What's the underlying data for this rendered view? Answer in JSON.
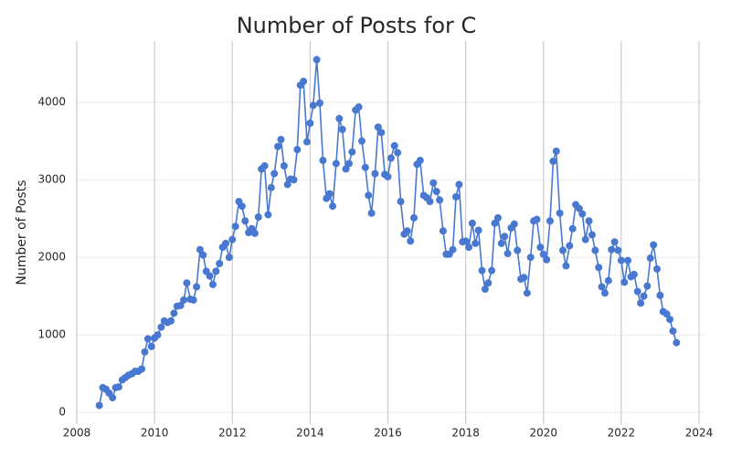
{
  "chart_data": {
    "type": "line",
    "title": "Number of Posts for C",
    "ylabel": "Number of Posts",
    "x": [
      2008.58,
      2008.67,
      2008.75,
      2008.83,
      2008.92,
      2009,
      2009.08,
      2009.17,
      2009.25,
      2009.33,
      2009.42,
      2009.5,
      2009.58,
      2009.67,
      2009.75,
      2009.83,
      2009.92,
      2010,
      2010.08,
      2010.17,
      2010.25,
      2010.33,
      2010.42,
      2010.5,
      2010.58,
      2010.67,
      2010.75,
      2010.83,
      2010.92,
      2011,
      2011.08,
      2011.17,
      2011.25,
      2011.33,
      2011.42,
      2011.5,
      2011.58,
      2011.67,
      2011.75,
      2011.83,
      2011.92,
      2012,
      2012.08,
      2012.17,
      2012.25,
      2012.33,
      2012.42,
      2012.5,
      2012.58,
      2012.67,
      2012.75,
      2012.83,
      2012.92,
      2013,
      2013.08,
      2013.17,
      2013.25,
      2013.33,
      2013.42,
      2013.5,
      2013.58,
      2013.67,
      2013.75,
      2013.83,
      2013.92,
      2014,
      2014.08,
      2014.17,
      2014.25,
      2014.33,
      2014.42,
      2014.5,
      2014.58,
      2014.67,
      2014.75,
      2014.83,
      2014.92,
      2015,
      2015.08,
      2015.17,
      2015.25,
      2015.33,
      2015.42,
      2015.5,
      2015.58,
      2015.67,
      2015.75,
      2015.83,
      2015.92,
      2016,
      2016.08,
      2016.17,
      2016.25,
      2016.33,
      2016.42,
      2016.5,
      2016.58,
      2016.67,
      2016.75,
      2016.83,
      2016.92,
      2017,
      2017.08,
      2017.17,
      2017.25,
      2017.33,
      2017.42,
      2017.5,
      2017.58,
      2017.67,
      2017.75,
      2017.83,
      2017.92,
      2018,
      2018.08,
      2018.17,
      2018.25,
      2018.33,
      2018.42,
      2018.5,
      2018.58,
      2018.67,
      2018.75,
      2018.83,
      2018.92,
      2019,
      2019.08,
      2019.17,
      2019.25,
      2019.33,
      2019.42,
      2019.5,
      2019.58,
      2019.67,
      2019.75,
      2019.83,
      2019.92,
      2020,
      2020.08,
      2020.17,
      2020.25,
      2020.33,
      2020.42,
      2020.5,
      2020.58,
      2020.67,
      2020.75,
      2020.83,
      2020.92,
      2021,
      2021.08,
      2021.17,
      2021.25,
      2021.33,
      2021.42,
      2021.5,
      2021.58,
      2021.67,
      2021.75,
      2021.83,
      2021.92,
      2022,
      2022.08,
      2022.17,
      2022.25,
      2022.33,
      2022.42,
      2022.5,
      2022.58,
      2022.67,
      2022.75,
      2022.83,
      2022.92,
      2023,
      2023.08,
      2023.17,
      2023.25,
      2023.33,
      2023.42
    ],
    "series": [
      {
        "name": "C",
        "color": "#4878cf",
        "values": [
          90,
          320,
          300,
          250,
          190,
          320,
          330,
          420,
          450,
          480,
          500,
          530,
          530,
          560,
          780,
          950,
          850,
          960,
          1000,
          1100,
          1180,
          1160,
          1180,
          1280,
          1370,
          1380,
          1450,
          1670,
          1460,
          1450,
          1620,
          2100,
          2030,
          1820,
          1760,
          1650,
          1820,
          1920,
          2130,
          2180,
          2000,
          2230,
          2400,
          2720,
          2660,
          2470,
          2320,
          2370,
          2310,
          2520,
          3140,
          3180,
          2550,
          2900,
          3080,
          3430,
          3520,
          3180,
          2940,
          3010,
          3000,
          3390,
          4220,
          4270,
          3490,
          3730,
          3960,
          4550,
          3990,
          3250,
          2760,
          2820,
          2660,
          3210,
          3790,
          3650,
          3140,
          3210,
          3360,
          3900,
          3940,
          3500,
          3160,
          2800,
          2570,
          3080,
          3680,
          3610,
          3070,
          3040,
          3280,
          3440,
          3350,
          2720,
          2300,
          2340,
          2210,
          2510,
          3200,
          3250,
          2800,
          2770,
          2720,
          2960,
          2850,
          2740,
          2340,
          2040,
          2040,
          2100,
          2780,
          2940,
          2200,
          2210,
          2130,
          2440,
          2180,
          2350,
          1830,
          1590,
          1670,
          1830,
          2440,
          2510,
          2180,
          2270,
          2050,
          2380,
          2430,
          2090,
          1720,
          1740,
          1540,
          2000,
          2470,
          2490,
          2130,
          2040,
          1970,
          2470,
          3240,
          3370,
          2570,
          2090,
          1890,
          2150,
          2370,
          2680,
          2630,
          2560,
          2230,
          2470,
          2290,
          2090,
          1870,
          1620,
          1540,
          1700,
          2100,
          2200,
          2090,
          1960,
          1680,
          1960,
          1750,
          1780,
          1560,
          1410,
          1500,
          1630,
          1990,
          2160,
          1850,
          1510,
          1300,
          1270,
          1200,
          1050,
          900
        ]
      }
    ],
    "xlim": [
      2008,
      2024
    ],
    "xticks": [
      2008,
      2010,
      2012,
      2014,
      2016,
      2018,
      2020,
      2022,
      2024
    ],
    "ylim": [
      -150,
      4790
    ],
    "yticks": [
      0,
      1000,
      2000,
      3000,
      4000
    ],
    "grid": true
  }
}
